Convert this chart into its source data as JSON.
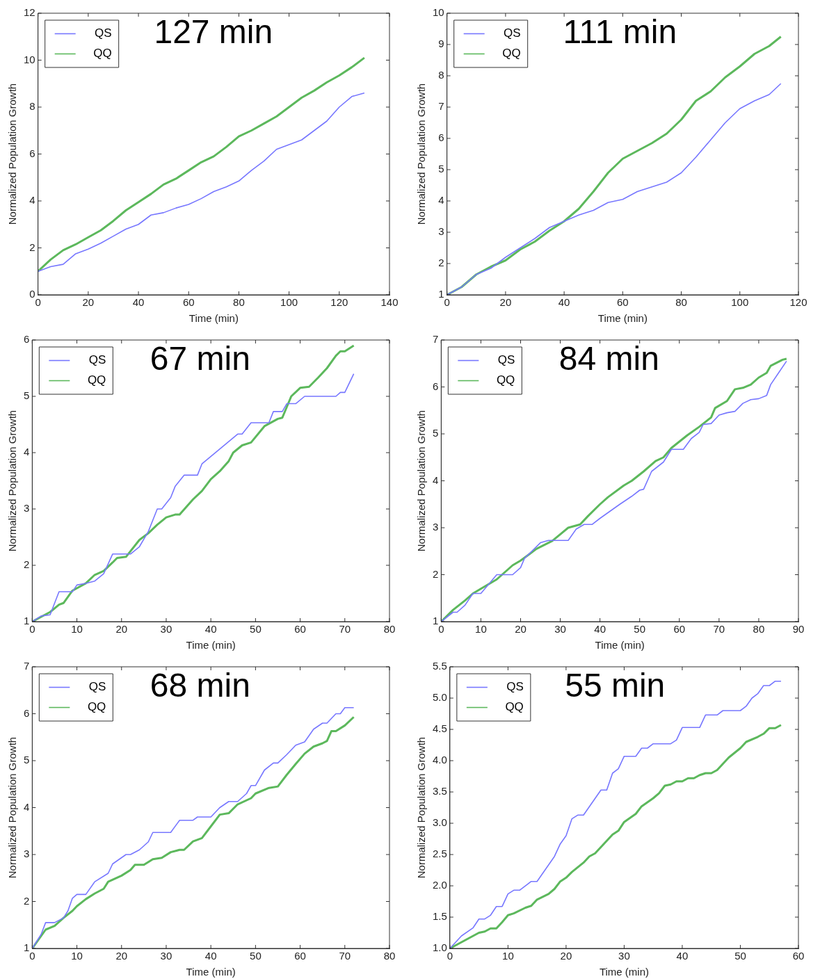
{
  "chart_data": [
    {
      "type": "line",
      "annotations": [
        "127 min"
      ],
      "xlabel": "Time (min)",
      "ylabel": "Normalized Population Growth",
      "legend": "top left",
      "grid": false,
      "xlim": [
        0,
        140
      ],
      "xticks": [
        0,
        20,
        40,
        60,
        80,
        100,
        120,
        140
      ],
      "ylim": [
        0,
        12
      ],
      "yticks": [
        0,
        2,
        4,
        6,
        8,
        10,
        12
      ],
      "series": [
        {
          "name": "QS",
          "color": "#7777ff",
          "x": [
            0,
            5,
            10,
            15,
            20,
            25,
            30,
            35,
            40,
            45,
            50,
            55,
            60,
            65,
            70,
            75,
            80,
            85,
            90,
            95,
            100,
            105,
            110,
            115,
            120,
            125,
            130
          ],
          "values": [
            1.0,
            1.2,
            1.3,
            1.75,
            1.95,
            2.2,
            2.5,
            2.8,
            3.0,
            3.4,
            3.5,
            3.7,
            3.85,
            4.1,
            4.4,
            4.6,
            4.85,
            5.3,
            5.7,
            6.2,
            6.4,
            6.6,
            7.0,
            7.4,
            8.0,
            8.45,
            8.6
          ]
        },
        {
          "name": "QQ",
          "color": "#5cb85c",
          "x": [
            0,
            5,
            10,
            15,
            20,
            25,
            30,
            35,
            40,
            45,
            50,
            55,
            60,
            65,
            70,
            75,
            80,
            85,
            90,
            95,
            100,
            105,
            110,
            115,
            120,
            125,
            130
          ],
          "values": [
            1.0,
            1.5,
            1.9,
            2.15,
            2.45,
            2.75,
            3.15,
            3.6,
            3.95,
            4.3,
            4.7,
            4.95,
            5.3,
            5.65,
            5.9,
            6.3,
            6.75,
            7.0,
            7.3,
            7.6,
            8.0,
            8.4,
            8.7,
            9.05,
            9.35,
            9.7,
            10.1
          ]
        }
      ]
    },
    {
      "type": "line",
      "annotations": [
        "111 min"
      ],
      "xlabel": "Time (min)",
      "ylabel": "Normalized Population Growth",
      "legend": "top left",
      "grid": false,
      "xlim": [
        0,
        120
      ],
      "xticks": [
        0,
        20,
        40,
        60,
        80,
        100,
        120
      ],
      "ylim": [
        1,
        10
      ],
      "yticks": [
        1,
        2,
        3,
        4,
        5,
        6,
        7,
        8,
        9,
        10
      ],
      "series": [
        {
          "name": "QS",
          "color": "#7777ff",
          "x": [
            0,
            5,
            10,
            15,
            20,
            25,
            30,
            35,
            40,
            45,
            50,
            55,
            60,
            65,
            70,
            75,
            80,
            85,
            90,
            95,
            100,
            105,
            110,
            114
          ],
          "values": [
            1,
            1.25,
            1.65,
            1.85,
            2.2,
            2.5,
            2.8,
            3.15,
            3.35,
            3.55,
            3.7,
            3.95,
            4.05,
            4.3,
            4.45,
            4.6,
            4.9,
            5.4,
            5.95,
            6.5,
            6.95,
            7.2,
            7.4,
            7.75
          ]
        },
        {
          "name": "QQ",
          "color": "#5cb85c",
          "x": [
            0,
            5,
            10,
            15,
            20,
            25,
            30,
            35,
            40,
            45,
            50,
            55,
            60,
            65,
            70,
            75,
            80,
            85,
            90,
            95,
            100,
            105,
            110,
            114
          ],
          "values": [
            1,
            1.25,
            1.65,
            1.9,
            2.1,
            2.45,
            2.7,
            3.05,
            3.35,
            3.75,
            4.3,
            4.9,
            5.35,
            5.6,
            5.85,
            6.15,
            6.6,
            7.2,
            7.5,
            7.95,
            8.3,
            8.7,
            8.95,
            9.25
          ]
        }
      ]
    },
    {
      "type": "line",
      "annotations": [
        "67 min"
      ],
      "xlabel": "Time (min)",
      "ylabel": "Normalized Population Growth",
      "legend": "top left",
      "grid": false,
      "xlim": [
        0,
        80
      ],
      "xticks": [
        0,
        10,
        20,
        30,
        40,
        50,
        60,
        70,
        80
      ],
      "ylim": [
        1,
        6
      ],
      "yticks": [
        1,
        2,
        3,
        4,
        5,
        6
      ],
      "series": [
        {
          "name": "QS",
          "color": "#7777ff",
          "x": [
            0,
            2,
            4,
            6,
            9,
            10,
            12,
            14,
            16,
            18,
            22,
            24,
            26,
            28,
            29,
            31,
            32,
            34,
            37,
            38,
            46,
            47,
            49,
            53,
            54,
            56,
            57,
            59,
            61,
            68,
            69,
            70,
            72
          ],
          "values": [
            1,
            1.1,
            1.12,
            1.53,
            1.53,
            1.65,
            1.68,
            1.72,
            1.85,
            2.2,
            2.2,
            2.33,
            2.6,
            3.0,
            3.0,
            3.2,
            3.4,
            3.6,
            3.6,
            3.8,
            4.33,
            4.33,
            4.53,
            4.53,
            4.73,
            4.73,
            4.87,
            4.87,
            5.0,
            5.0,
            5.07,
            5.07,
            5.4
          ]
        },
        {
          "name": "QQ",
          "color": "#5cb85c",
          "x": [
            0,
            4,
            6,
            7,
            9,
            12,
            14,
            16,
            18,
            19,
            21,
            24,
            26,
            28,
            30,
            32,
            33,
            36,
            38,
            40,
            42,
            44,
            45,
            47,
            49,
            52,
            55,
            56,
            58,
            60,
            62,
            64,
            66,
            68,
            69,
            70,
            72
          ],
          "values": [
            1,
            1.17,
            1.3,
            1.33,
            1.55,
            1.68,
            1.83,
            1.9,
            2.05,
            2.13,
            2.15,
            2.45,
            2.57,
            2.72,
            2.85,
            2.9,
            2.9,
            3.17,
            3.32,
            3.53,
            3.67,
            3.85,
            4.0,
            4.13,
            4.18,
            4.47,
            4.6,
            4.62,
            5.0,
            5.15,
            5.17,
            5.33,
            5.5,
            5.72,
            5.8,
            5.8,
            5.9
          ]
        }
      ]
    },
    {
      "type": "line",
      "annotations": [
        "84 min"
      ],
      "xlabel": "Time (min)",
      "ylabel": "Normalized Population Growth",
      "legend": "top left",
      "grid": false,
      "xlim": [
        0,
        90
      ],
      "xticks": [
        0,
        10,
        20,
        30,
        40,
        50,
        60,
        70,
        80,
        90
      ],
      "ylim": [
        1,
        7
      ],
      "yticks": [
        1,
        2,
        3,
        4,
        5,
        6,
        7
      ],
      "series": [
        {
          "name": "QS",
          "color": "#7777ff",
          "x": [
            0,
            3,
            4,
            6,
            8,
            10,
            12,
            14,
            18,
            20,
            21,
            25,
            27,
            32,
            34,
            36,
            38,
            40,
            45,
            48,
            50,
            51,
            53,
            56,
            58,
            61,
            63,
            65,
            66,
            68,
            70,
            72,
            74,
            76,
            78,
            80,
            82,
            83,
            85,
            87
          ],
          "values": [
            1.0,
            1.2,
            1.2,
            1.35,
            1.6,
            1.6,
            1.8,
            2.0,
            2.0,
            2.15,
            2.35,
            2.68,
            2.73,
            2.73,
            2.97,
            3.07,
            3.07,
            3.2,
            3.5,
            3.67,
            3.8,
            3.82,
            4.2,
            4.4,
            4.67,
            4.67,
            4.9,
            5.03,
            5.2,
            5.22,
            5.4,
            5.45,
            5.48,
            5.65,
            5.73,
            5.75,
            5.82,
            6.05,
            6.3,
            6.55
          ]
        },
        {
          "name": "QQ",
          "color": "#5cb85c",
          "x": [
            0,
            3,
            6,
            8,
            10,
            14,
            18,
            20,
            24,
            28,
            32,
            35,
            37,
            40,
            42,
            46,
            48,
            51,
            54,
            56,
            58,
            62,
            65,
            68,
            69,
            72,
            74,
            76,
            78,
            80,
            82,
            83,
            86,
            87
          ],
          "values": [
            1.0,
            1.25,
            1.45,
            1.6,
            1.7,
            1.9,
            2.2,
            2.3,
            2.55,
            2.72,
            3.0,
            3.07,
            3.25,
            3.5,
            3.65,
            3.9,
            4.0,
            4.2,
            4.42,
            4.5,
            4.7,
            4.97,
            5.15,
            5.35,
            5.55,
            5.7,
            5.95,
            5.98,
            6.05,
            6.2,
            6.3,
            6.45,
            6.58,
            6.6
          ]
        }
      ]
    },
    {
      "type": "line",
      "annotations": [
        "68 min"
      ],
      "xlabel": "Time (min)",
      "ylabel": "Normalized Population Growth",
      "legend": "top left",
      "grid": false,
      "xlim": [
        0,
        80
      ],
      "xticks": [
        0,
        10,
        20,
        30,
        40,
        50,
        60,
        70,
        80
      ],
      "ylim": [
        1,
        7
      ],
      "yticks": [
        1,
        2,
        3,
        4,
        5,
        6,
        7
      ],
      "series": [
        {
          "name": "QS",
          "color": "#7777ff",
          "x": [
            0,
            2,
            3,
            5,
            7,
            8,
            9,
            10,
            12,
            14,
            17,
            18,
            21,
            22,
            24,
            26,
            27,
            31,
            33,
            36,
            37,
            40,
            42,
            44,
            46,
            48,
            49,
            50,
            52,
            54,
            55,
            57,
            59,
            61,
            63,
            65,
            66,
            68,
            69,
            70,
            72
          ],
          "values": [
            1,
            1.3,
            1.55,
            1.55,
            1.65,
            1.8,
            2.07,
            2.15,
            2.15,
            2.42,
            2.6,
            2.8,
            3.0,
            3.0,
            3.1,
            3.27,
            3.47,
            3.47,
            3.73,
            3.73,
            3.8,
            3.8,
            4.0,
            4.13,
            4.13,
            4.3,
            4.47,
            4.47,
            4.8,
            4.95,
            4.95,
            5.13,
            5.33,
            5.4,
            5.67,
            5.8,
            5.8,
            6.0,
            6.0,
            6.13,
            6.13
          ]
        },
        {
          "name": "QQ",
          "color": "#5cb85c",
          "x": [
            0,
            3,
            5,
            7,
            9,
            10,
            12,
            14,
            16,
            17,
            20,
            22,
            23,
            25,
            27,
            29,
            31,
            33,
            34,
            36,
            38,
            40,
            42,
            44,
            46,
            49,
            50,
            53,
            55,
            57,
            59,
            61,
            63,
            65,
            66,
            67,
            68,
            70,
            72
          ],
          "values": [
            1,
            1.4,
            1.48,
            1.65,
            1.8,
            1.9,
            2.05,
            2.17,
            2.27,
            2.42,
            2.55,
            2.67,
            2.78,
            2.78,
            2.9,
            2.93,
            3.05,
            3.1,
            3.1,
            3.28,
            3.35,
            3.6,
            3.85,
            3.88,
            4.07,
            4.2,
            4.3,
            4.42,
            4.45,
            4.7,
            4.93,
            5.15,
            5.3,
            5.37,
            5.42,
            5.63,
            5.63,
            5.75,
            5.93
          ]
        }
      ]
    },
    {
      "type": "line",
      "annotations": [
        "55 min"
      ],
      "xlabel": "Time (min)",
      "ylabel": "Normalized Population Growth",
      "legend": "top left",
      "grid": false,
      "xlim": [
        0,
        60
      ],
      "xticks": [
        0,
        10,
        20,
        30,
        40,
        50,
        60
      ],
      "ylim": [
        1,
        5.5
      ],
      "yticks": [
        {
          "value": 1,
          "label": "1.0"
        },
        1.5,
        {
          "value": 2,
          "label": "2.0"
        },
        2.5,
        {
          "value": 3,
          "label": "3.0"
        },
        3.5,
        {
          "value": 4,
          "label": "4.0"
        },
        4.5,
        {
          "value": 5,
          "label": "5.0"
        },
        5.5
      ],
      "series": [
        {
          "name": "QS",
          "color": "#7777ff",
          "x": [
            0,
            2,
            4,
            5,
            6,
            7,
            8,
            9,
            10,
            11,
            12,
            14,
            15,
            18,
            19,
            20,
            21,
            22,
            23,
            26,
            27,
            28,
            29,
            30,
            32,
            33,
            34,
            35,
            38,
            39,
            40,
            43,
            44,
            46,
            47,
            50,
            51,
            52,
            53,
            54,
            55,
            56,
            57
          ],
          "values": [
            1,
            1.2,
            1.33,
            1.47,
            1.47,
            1.53,
            1.67,
            1.67,
            1.87,
            1.93,
            1.93,
            2.07,
            2.07,
            2.47,
            2.67,
            2.8,
            3.07,
            3.13,
            3.13,
            3.53,
            3.53,
            3.8,
            3.87,
            4.07,
            4.07,
            4.2,
            4.2,
            4.27,
            4.27,
            4.33,
            4.53,
            4.53,
            4.73,
            4.73,
            4.8,
            4.8,
            4.87,
            5.0,
            5.07,
            5.2,
            5.2,
            5.27,
            5.27
          ]
        },
        {
          "name": "QQ",
          "color": "#5cb85c",
          "x": [
            0,
            5,
            6,
            7,
            8,
            9,
            10,
            11,
            13,
            14,
            15,
            17,
            18,
            19,
            20,
            21,
            23,
            24,
            25,
            27,
            28,
            29,
            30,
            32,
            33,
            35,
            36,
            37,
            38,
            39,
            40,
            41,
            42,
            43,
            44,
            45,
            46,
            48,
            50,
            51,
            53,
            54,
            55,
            56,
            57
          ],
          "values": [
            1,
            1.25,
            1.27,
            1.32,
            1.32,
            1.42,
            1.53,
            1.56,
            1.65,
            1.68,
            1.78,
            1.87,
            1.95,
            2.07,
            2.13,
            2.22,
            2.37,
            2.47,
            2.52,
            2.72,
            2.82,
            2.88,
            3.02,
            3.15,
            3.27,
            3.4,
            3.48,
            3.6,
            3.62,
            3.67,
            3.67,
            3.72,
            3.72,
            3.77,
            3.8,
            3.8,
            3.85,
            4.05,
            4.2,
            4.3,
            4.38,
            4.43,
            4.52,
            4.52,
            4.57
          ]
        }
      ]
    }
  ]
}
